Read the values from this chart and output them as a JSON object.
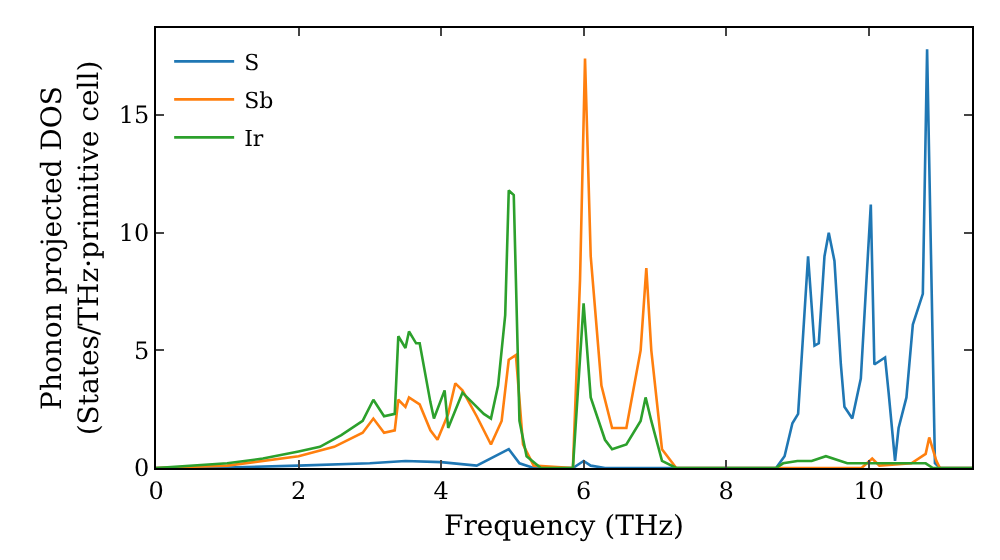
{
  "chart_data": {
    "type": "line",
    "xlabel": "Frequency (THz)",
    "ylabel": "Phonon projected DOS\n(States/THz·primitive cell)",
    "xlim": [
      0,
      11.45
    ],
    "ylim": [
      0,
      18.7
    ],
    "xticks": [
      0,
      2,
      4,
      6,
      8,
      10
    ],
    "yticks": [
      0,
      5,
      10,
      15
    ],
    "grid": false,
    "legend": "top left",
    "marker": "none",
    "line_style": "solid",
    "series": [
      {
        "name": "S",
        "color": "#1f77b4",
        "x": [
          0,
          1,
          2,
          3,
          3.5,
          4,
          4.5,
          4.95,
          5.1,
          5.3,
          5.85,
          6.0,
          6.1,
          6.3,
          8.7,
          8.82,
          8.93,
          9.01,
          9.15,
          9.24,
          9.3,
          9.38,
          9.44,
          9.52,
          9.61,
          9.66,
          9.77,
          9.89,
          10.03,
          10.08,
          10.23,
          10.28,
          10.37,
          10.42,
          10.53,
          10.62,
          10.76,
          10.82,
          10.93,
          11,
          11.45
        ],
        "values": [
          0,
          0.02,
          0.1,
          0.2,
          0.3,
          0.25,
          0.1,
          0.8,
          0.2,
          0,
          0,
          0.3,
          0.1,
          0,
          0,
          0.5,
          1.9,
          2.3,
          9.0,
          5.2,
          5.3,
          9.0,
          10.0,
          8.8,
          4.4,
          2.6,
          2.1,
          3.8,
          11.2,
          4.4,
          4.7,
          3.2,
          0.3,
          1.7,
          3.0,
          6.1,
          7.4,
          17.8,
          0.2,
          0,
          0
        ]
      },
      {
        "name": "Sb",
        "color": "#ff7f0e",
        "x": [
          0,
          1,
          2,
          2.5,
          2.9,
          3.05,
          3.2,
          3.35,
          3.4,
          3.5,
          3.55,
          3.7,
          3.85,
          3.95,
          4.1,
          4.2,
          4.3,
          4.5,
          4.7,
          4.85,
          4.95,
          5.05,
          5.15,
          5.3,
          5.85,
          5.95,
          6.02,
          6.1,
          6.25,
          6.4,
          6.6,
          6.8,
          6.88,
          6.95,
          7.1,
          7.3,
          9.9,
          10.05,
          10.15,
          10.6,
          10.8,
          10.85,
          10.95,
          11,
          11.45
        ],
        "values": [
          0,
          0.1,
          0.5,
          0.9,
          1.5,
          2.1,
          1.5,
          1.6,
          2.9,
          2.6,
          3.0,
          2.7,
          1.6,
          1.2,
          2.3,
          3.6,
          3.3,
          2.2,
          1.0,
          2.0,
          4.6,
          4.8,
          1.0,
          0.1,
          0,
          8.0,
          17.4,
          9.0,
          3.5,
          1.7,
          1.7,
          5.0,
          8.5,
          5.0,
          0.8,
          0,
          0,
          0.4,
          0.1,
          0.2,
          0.6,
          1.3,
          0.3,
          0,
          0
        ]
      },
      {
        "name": "Ir",
        "color": "#2ca02c",
        "x": [
          0,
          1,
          1.5,
          2,
          2.3,
          2.6,
          2.9,
          3.05,
          3.2,
          3.35,
          3.4,
          3.5,
          3.55,
          3.65,
          3.7,
          3.85,
          3.9,
          4.05,
          4.1,
          4.3,
          4.6,
          4.7,
          4.8,
          4.9,
          4.95,
          5.02,
          5.1,
          5.2,
          5.4,
          5.85,
          6.0,
          6.1,
          6.3,
          6.4,
          6.6,
          6.8,
          6.87,
          6.95,
          7.1,
          7.3,
          8.7,
          8.8,
          9.0,
          9.2,
          9.4,
          9.7,
          10,
          10.8,
          10.9,
          11,
          11.45
        ],
        "values": [
          0,
          0.2,
          0.4,
          0.7,
          0.9,
          1.4,
          2.0,
          2.9,
          2.2,
          2.3,
          5.6,
          5.1,
          5.8,
          5.3,
          5.3,
          2.8,
          2.1,
          3.3,
          1.7,
          3.2,
          2.3,
          2.1,
          3.5,
          6.5,
          11.8,
          11.6,
          2.0,
          0.5,
          0,
          0,
          7.0,
          3.0,
          1.2,
          0.8,
          1.0,
          2.0,
          3.0,
          2.0,
          0.3,
          0,
          0,
          0.2,
          0.3,
          0.3,
          0.5,
          0.2,
          0.2,
          0.2,
          0,
          0,
          0
        ]
      }
    ]
  }
}
